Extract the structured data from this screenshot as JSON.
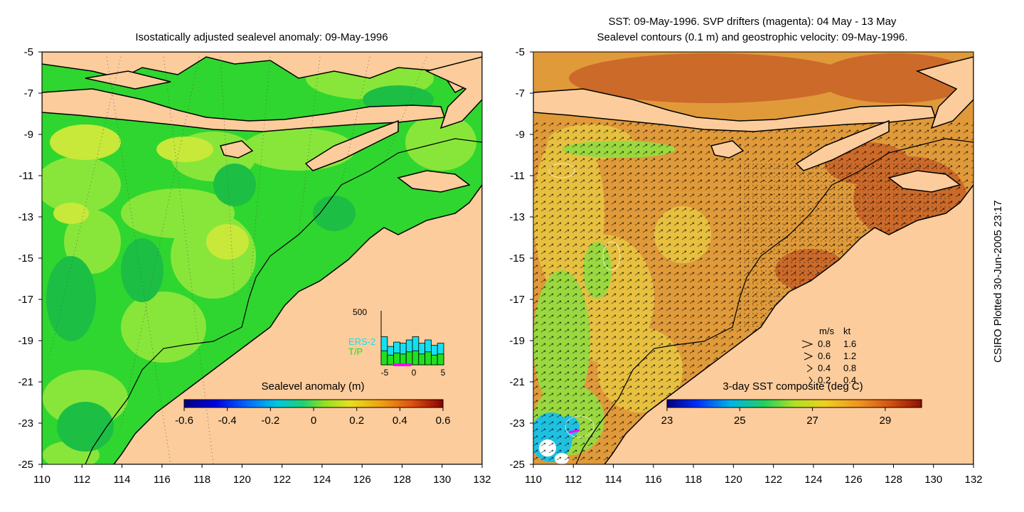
{
  "left_panel": {
    "title": "Isostatically adjusted sealevel anomaly: 09-May-1996",
    "lon_ticks": [
      "110",
      "112",
      "114",
      "116",
      "118",
      "120",
      "122",
      "124",
      "126",
      "128",
      "130",
      "132"
    ],
    "lat_ticks": [
      "-5",
      "-7",
      "-9",
      "-11",
      "-13",
      "-15",
      "-17",
      "-19",
      "-21",
      "-23",
      "-25"
    ],
    "colorbar": {
      "title": "Sealevel anomaly (m)",
      "ticks": [
        "-0.6",
        "-0.4",
        "-0.2",
        "0",
        "0.2",
        "0.4",
        "0.6"
      ]
    },
    "histogram": {
      "y_max_label": "500",
      "x_ticks": [
        "-5",
        "0",
        "5"
      ],
      "legend_ers2": "ERS-2",
      "legend_tp": "T/P",
      "ers2_counts": [
        260,
        170,
        210,
        200,
        230,
        260,
        200,
        230,
        180,
        200
      ],
      "tp_counts": [
        130,
        90,
        110,
        100,
        120,
        130,
        100,
        120,
        90,
        100
      ],
      "y_max": 500
    }
  },
  "right_panel": {
    "title_line1": "SST: 09-May-1996. SVP drifters (magenta): 04 May - 13 May",
    "title_line2": "Sealevel contours (0.1 m) and geostrophic velocity: 09-May-1996.",
    "lon_ticks": [
      "110",
      "112",
      "114",
      "116",
      "118",
      "120",
      "122",
      "124",
      "126",
      "128",
      "130",
      "132"
    ],
    "lat_ticks": [
      "-5",
      "-7",
      "-9",
      "-11",
      "-13",
      "-15",
      "-17",
      "-19",
      "-21",
      "-23",
      "-25"
    ],
    "colorbar": {
      "title": "3-day SST composite (deg C)",
      "ticks": [
        "23",
        "25",
        "27",
        "29"
      ]
    },
    "velocity_legend": {
      "header_ms": "m/s",
      "header_kt": "kt",
      "rows": [
        {
          "ms": "0.8",
          "kt": "1.6"
        },
        {
          "ms": "0.6",
          "kt": "1.2"
        },
        {
          "ms": "0.4",
          "kt": "0.8"
        },
        {
          "ms": "0.2",
          "kt": "0.4"
        }
      ]
    }
  },
  "side_label": "CSIRO Plotted 30-Jun-2005 23:17",
  "colors": {
    "land": "#fccc9c",
    "sla_base": "#2fd62f",
    "sst_base": "#e09a3a",
    "ers2": "#14e0f0",
    "tp": "#20e020",
    "drifter": "#ff00ff"
  }
}
